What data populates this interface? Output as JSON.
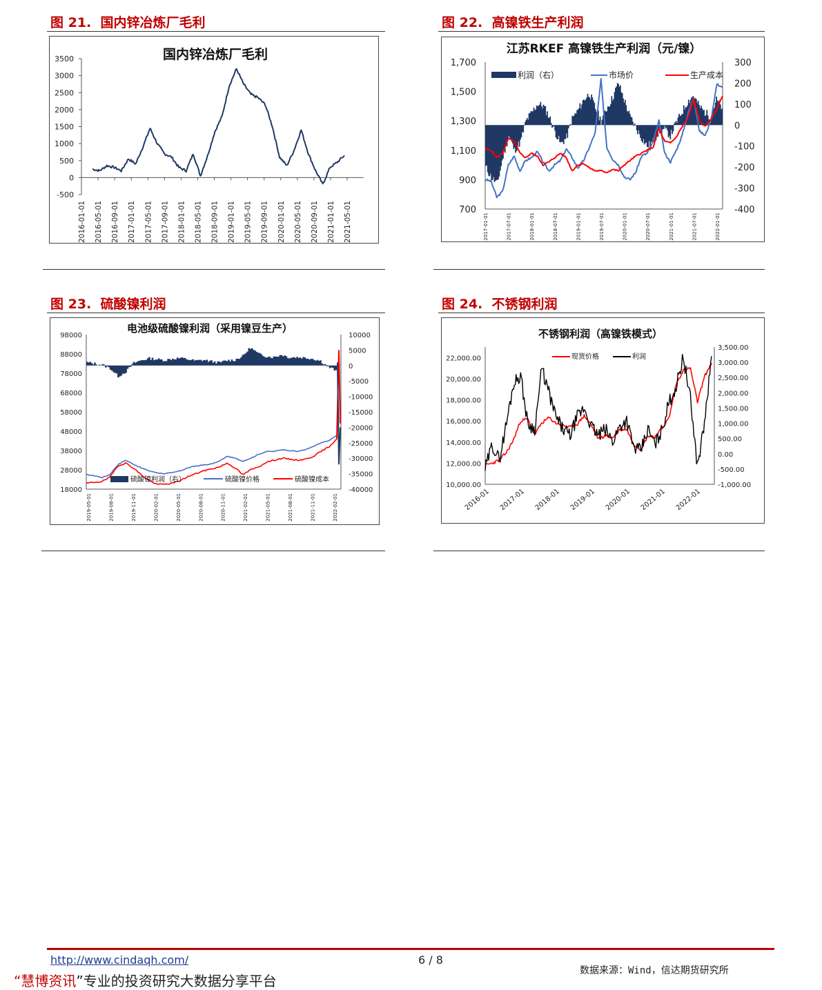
{
  "figures": [
    {
      "label": "图 21.",
      "title": "国内锌冶炼厂毛利"
    },
    {
      "label": "图 22.",
      "title": "高镍铁生产利润"
    },
    {
      "label": "图 23.",
      "title": "硫酸镍利润"
    },
    {
      "label": "图 24.",
      "title": "不锈钢利润"
    }
  ],
  "footer": {
    "url": "http://www.cindaqh.com/",
    "page": "6 / 8",
    "brand_quote_open": "“",
    "brand_name": "慧博资讯",
    "brand_quote_close": "”",
    "brand_tagline": "专业的投资研究大数据分享平台",
    "source": "数据来源：Wind，信达期货研究所"
  },
  "chart_data": [
    {
      "type": "line",
      "title": "国内锌冶炼厂毛利",
      "xlabel": "",
      "ylabel": "",
      "ylim": [
        -500,
        3500
      ],
      "y_ticks": [
        "3500",
        "3000",
        "2500",
        "2000",
        "1500",
        "1000",
        "500",
        "0",
        "-500"
      ],
      "x_ticks": [
        "2016-01-01",
        "2016-05-01",
        "2016-09-01",
        "2017-01-01",
        "2017-05-01",
        "2017-09-01",
        "2018-01-01",
        "2018-05-01",
        "2018-09-01",
        "2019-01-01",
        "2019-05-01",
        "2019-09-01",
        "2020-01-01",
        "2020-05-01",
        "2020-09-01",
        "2021-01-01",
        "2021-05-01"
      ],
      "line_color": "#1f3864",
      "series": [
        {
          "x": [
            "2016-02",
            "2016-04",
            "2016-06",
            "2016-08",
            "2016-10",
            "2016-12",
            "2017-02",
            "2017-04",
            "2017-06",
            "2017-08",
            "2017-10",
            "2017-12",
            "2018-02",
            "2018-04",
            "2018-06",
            "2018-08",
            "2018-10",
            "2018-12",
            "2019-02",
            "2019-04",
            "2019-05",
            "2019-06",
            "2019-08",
            "2019-10",
            "2019-12",
            "2020-02",
            "2020-04",
            "2020-06",
            "2020-08",
            "2020-10",
            "2020-12",
            "2021-01",
            "2021-02",
            "2021-04",
            "2021-06",
            "2021-07"
          ],
          "values": [
            250,
            200,
            350,
            300,
            200,
            550,
            400,
            900,
            1450,
            1000,
            700,
            600,
            300,
            200,
            700,
            50,
            650,
            1350,
            1800,
            2700,
            3200,
            2750,
            2450,
            2350,
            2150,
            1500,
            600,
            350,
            800,
            1400,
            700,
            200,
            -200,
            300,
            450,
            650
          ]
        }
      ]
    },
    {
      "type": "line",
      "title": "江苏RKEF 高镍铁生产利润（元/镍）",
      "ylim": [
        700,
        1700
      ],
      "y2lim": [
        -400,
        300
      ],
      "y_ticks": [
        "1,700",
        "1,500",
        "1,300",
        "1,100",
        "900",
        "700"
      ],
      "y2_ticks": [
        "300",
        "200",
        "100",
        "0",
        "-100",
        "-200",
        "-300",
        "-400"
      ],
      "x_ticks": [
        "2017-01-01",
        "2017-07-01",
        "2018-01-01",
        "2018-07-01",
        "2019-01-01",
        "2019-07-01",
        "2020-01-01",
        "2020-07-01",
        "2021-01-01",
        "2021-07-01",
        "2022-01-01"
      ],
      "legend": [
        "利润（右）",
        "市场价",
        "生产成本"
      ],
      "legend_position": "top",
      "colors": {
        "profit": "#1f3864",
        "price": "#4472c4",
        "cost": "#ff0000"
      },
      "series": [
        {
          "name": "利润（右）",
          "axis": "right",
          "values": [
            -200,
            -250,
            -280,
            -150,
            -50,
            -120,
            -80,
            20,
            60,
            100,
            90,
            40,
            -30,
            -90,
            -60,
            30,
            70,
            120,
            150,
            80,
            20,
            80,
            130,
            200,
            120,
            40,
            -10,
            -60,
            -100,
            -80,
            -30,
            -20,
            -50,
            10,
            60,
            110,
            140,
            90,
            60,
            40,
            120,
            80
          ]
        },
        {
          "name": "市场价",
          "axis": "left",
          "values": [
            900,
            890,
            780,
            820,
            1000,
            1060,
            960,
            1030,
            1050,
            1090,
            1020,
            960,
            1000,
            1030,
            1110,
            1050,
            980,
            1030,
            1120,
            1220,
            1580,
            1120,
            1040,
            1000,
            920,
            900,
            950,
            1060,
            1080,
            1160,
            1300,
            1080,
            1020,
            1100,
            1200,
            1350,
            1460,
            1230,
            1200,
            1310,
            1550,
            1530
          ]
        },
        {
          "name": "生产成本",
          "axis": "left",
          "values": [
            1110,
            1100,
            1050,
            1080,
            1180,
            1160,
            1080,
            1050,
            1080,
            1060,
            1000,
            1020,
            1050,
            1080,
            1050,
            960,
            1000,
            1010,
            980,
            960,
            960,
            950,
            970,
            960,
            1000,
            1030,
            1060,
            1080,
            1100,
            1120,
            1250,
            1160,
            1150,
            1190,
            1260,
            1320,
            1450,
            1300,
            1260,
            1310,
            1380,
            1470
          ]
        }
      ]
    },
    {
      "type": "line",
      "title": "电池级硫酸镍利润（采用镍豆生产）",
      "ylim": [
        18000,
        98000
      ],
      "y2lim": [
        -40000,
        10000
      ],
      "y_ticks": [
        "98000",
        "88000",
        "78000",
        "68000",
        "58000",
        "48000",
        "38000",
        "28000",
        "18000"
      ],
      "y2_ticks": [
        "10000",
        "5000",
        "0",
        "-5000",
        "-10000",
        "-15000",
        "-20000",
        "-25000",
        "-30000",
        "-35000",
        "-40000"
      ],
      "x_ticks": [
        "2019-05-01",
        "2019-08-01",
        "2019-11-01",
        "2020-02-01",
        "2020-05-01",
        "2020-08-01",
        "2020-11-01",
        "2021-02-01",
        "2021-05-01",
        "2021-08-01",
        "2021-11-01",
        "2022-02-01"
      ],
      "legend": [
        "硫酸镍利润（右）",
        "硫酸镍价格",
        "硫酸镍成本"
      ],
      "legend_position": "bottom",
      "colors": {
        "profit": "#1f3864",
        "price": "#4472c4",
        "cost": "#ff0000"
      },
      "series": [
        {
          "name": "硫酸镍利润（右）",
          "axis": "right",
          "values": [
            1000,
            600,
            200,
            -1000,
            -3500,
            -2000,
            800,
            1700,
            2300,
            2000,
            1700,
            2200,
            2400,
            2000,
            1500,
            1800,
            1300,
            900,
            1600,
            1800,
            3000,
            5800,
            3800,
            3000,
            2700,
            3500,
            2600,
            2700,
            2500,
            2200,
            1500,
            -500,
            -1500
          ]
        },
        {
          "name": "硫酸镍价格",
          "axis": "left",
          "values": [
            25500,
            25000,
            24000,
            25500,
            30500,
            33000,
            31000,
            29000,
            27500,
            26500,
            26000,
            26500,
            27500,
            29000,
            30000,
            30500,
            31000,
            32500,
            35000,
            34000,
            32500,
            34000,
            36000,
            37500,
            37500,
            38500,
            38000,
            37500,
            38500,
            40000,
            42000,
            43000,
            46000
          ]
        },
        {
          "name": "硫酸镍成本",
          "axis": "left",
          "values": [
            21000,
            21500,
            22000,
            24000,
            30000,
            31500,
            29000,
            25500,
            22500,
            20500,
            20500,
            21000,
            22500,
            24500,
            26000,
            27500,
            28500,
            29500,
            31500,
            29000,
            25500,
            28000,
            29500,
            32000,
            33000,
            34000,
            33500,
            33000,
            33500,
            35000,
            37500,
            40000,
            44000
          ]
        }
      ]
    },
    {
      "type": "line",
      "title": "不锈钢利润（高镍铁模式）",
      "ylim": [
        10000,
        23000
      ],
      "y2lim": [
        -1000,
        3500
      ],
      "y_ticks": [
        "22,000.00",
        "20,000.00",
        "18,000.00",
        "16,000.00",
        "14,000.00",
        "12,000.00",
        "10,000.00"
      ],
      "y2_ticks": [
        "3,500.00",
        "3,000.00",
        "2,500.00",
        "2,000.00",
        "1,500.00",
        "1,000.00",
        "500.00",
        "0.00",
        "-500.00",
        "-1,000.00"
      ],
      "x_ticks": [
        "2016-01",
        "2017-01",
        "2018-01",
        "2019-01",
        "2020-01",
        "2021-01",
        "2022-01"
      ],
      "legend": [
        "现货价格",
        "利润"
      ],
      "legend_position": "top",
      "colors": {
        "price": "#ff0000",
        "profit": "#000000"
      },
      "series": [
        {
          "name": "现货价格",
          "axis": "left",
          "values": [
            11800,
            12000,
            12300,
            13000,
            14200,
            16000,
            16200,
            14700,
            15800,
            16300,
            15800,
            15600,
            15400,
            15700,
            16500,
            15600,
            14300,
            14600,
            14400,
            15200,
            15200,
            13800,
            13300,
            14600,
            14500,
            15300,
            16300,
            19500,
            20800,
            21000,
            17800,
            20200,
            21500
          ]
        },
        {
          "name": "利润",
          "axis": "right",
          "values": [
            -500,
            300,
            -200,
            1000,
            2300,
            2600,
            1000,
            800,
            2800,
            2000,
            1200,
            800,
            600,
            1200,
            1500,
            900,
            600,
            800,
            400,
            900,
            1100,
            200,
            100,
            800,
            300,
            800,
            1700,
            2200,
            3200,
            1800,
            -400,
            1000,
            3200
          ]
        }
      ]
    }
  ]
}
